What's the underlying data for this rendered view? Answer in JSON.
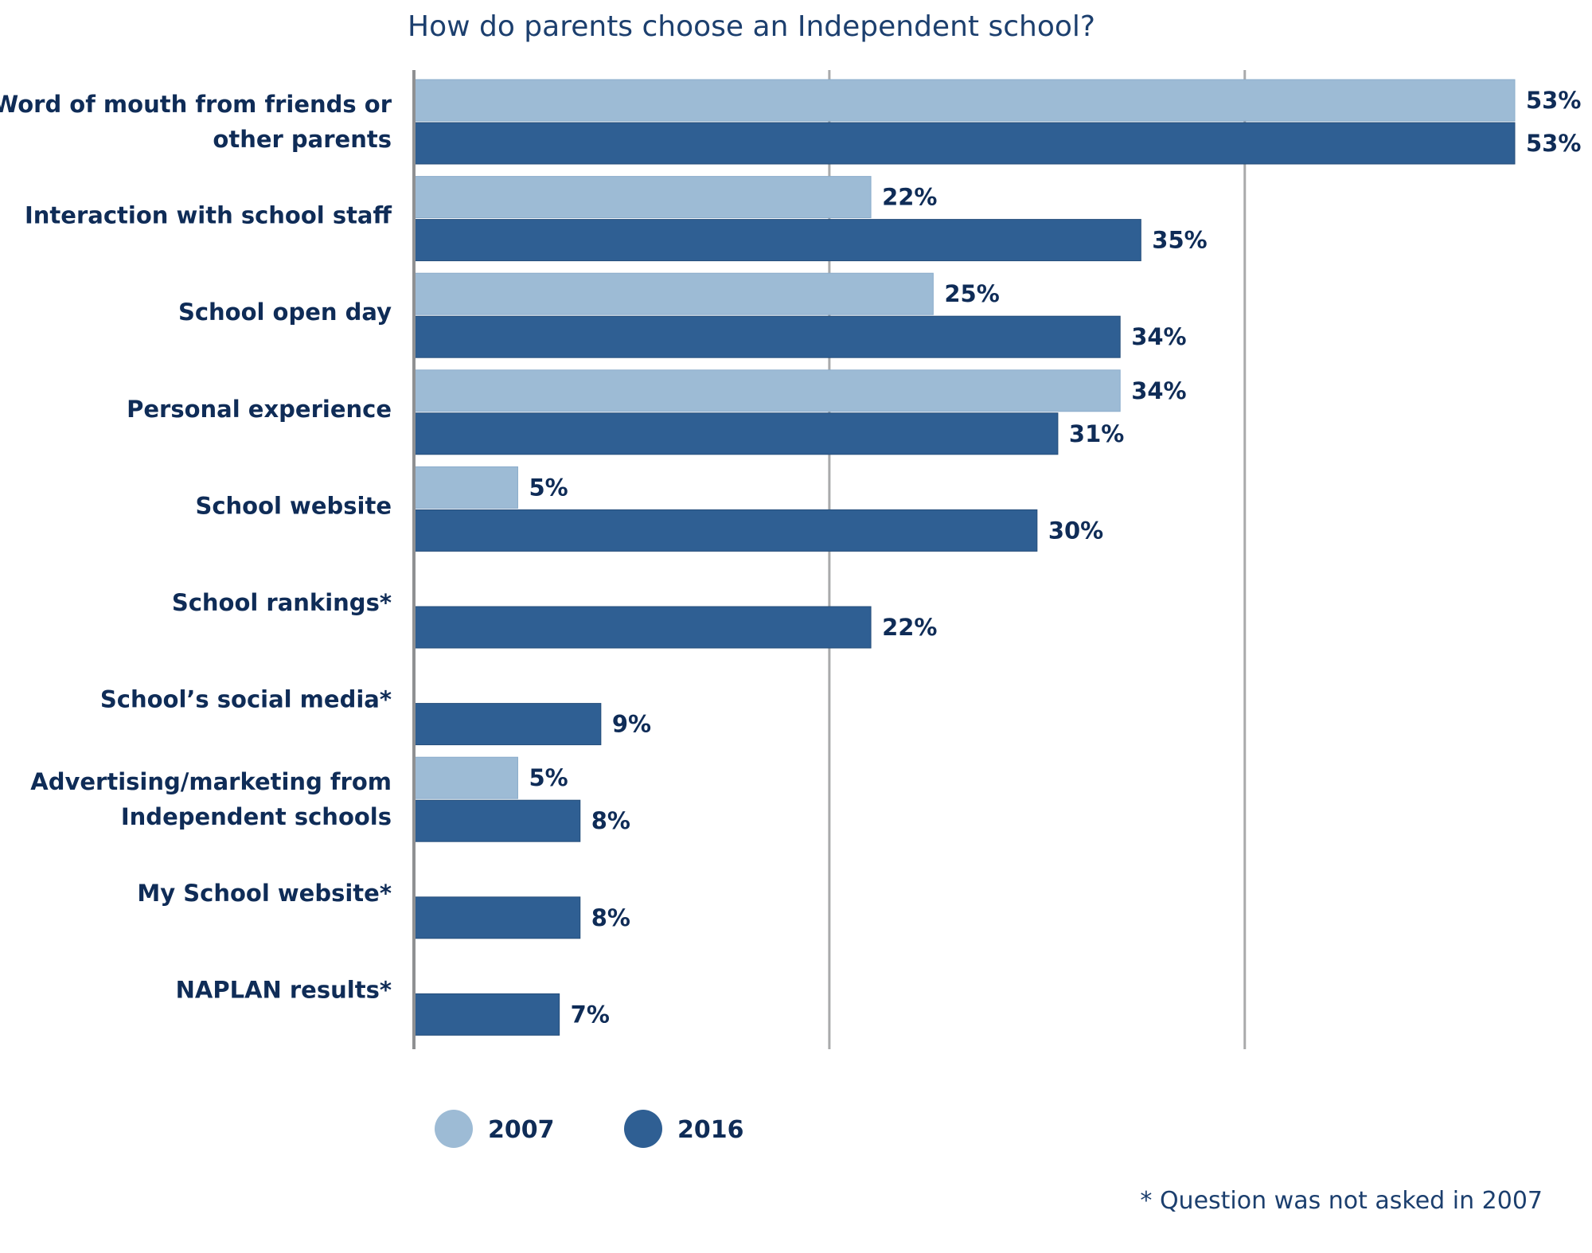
{
  "chart_data": {
    "type": "bar",
    "orientation": "horizontal",
    "title": "How do parents choose an Independent school?",
    "categories": [
      [
        "Word of mouth from friends or",
        "other parents"
      ],
      [
        "Interaction with school staff"
      ],
      [
        "School open day"
      ],
      [
        "Personal experience"
      ],
      [
        "School website"
      ],
      [
        "School rankings*"
      ],
      [
        "School’s social media*"
      ],
      [
        "Advertising/marketing from",
        "Independent schools"
      ],
      [
        "My School website*"
      ],
      [
        "NAPLAN results*"
      ]
    ],
    "series": [
      {
        "name": "2007",
        "color": "#9dbbd5",
        "values": [
          53,
          22,
          25,
          34,
          5,
          null,
          null,
          5,
          null,
          null
        ],
        "labels": [
          "53%",
          "22%",
          "25%",
          "34%",
          "5%",
          null,
          null,
          "5%",
          null,
          null
        ]
      },
      {
        "name": "2016",
        "color": "#2f5f93",
        "values": [
          53,
          35,
          34,
          31,
          30,
          22,
          9,
          8,
          8,
          7
        ],
        "labels": [
          "53%",
          "35%",
          "34%",
          "31%",
          "30%",
          "22%",
          "9%",
          "8%",
          "8%",
          "7%"
        ]
      }
    ],
    "xlim": [
      0,
      53
    ],
    "gridlines": [
      20,
      40
    ],
    "grid": true,
    "legend_position": "bottom-left",
    "footnote": "* Question was not asked in 2007"
  }
}
